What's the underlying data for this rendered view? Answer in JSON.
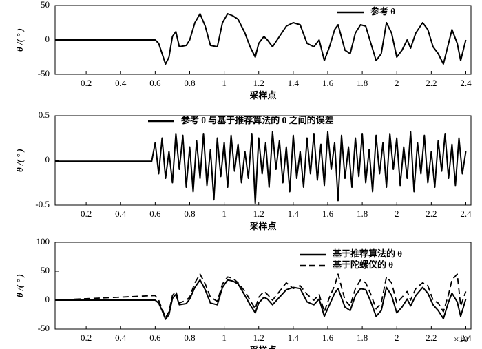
{
  "chart_data": [
    {
      "type": "line",
      "ylabel": "θ /( ° )",
      "xlabel": "采样点",
      "xlim": [
        0.02,
        2.43
      ],
      "xticks": [
        0.2,
        0.4,
        0.6,
        0.8,
        1.0,
        1.2,
        1.4,
        1.6,
        1.8,
        2.0,
        2.2,
        2.4
      ],
      "ylim": [
        -50,
        50
      ],
      "yticks": [
        -50,
        0,
        50
      ],
      "x": [
        0.02,
        0.6,
        0.62,
        0.64,
        0.66,
        0.68,
        0.7,
        0.72,
        0.74,
        0.78,
        0.8,
        0.83,
        0.86,
        0.89,
        0.92,
        0.96,
        0.99,
        1.02,
        1.05,
        1.08,
        1.12,
        1.15,
        1.18,
        1.2,
        1.23,
        1.25,
        1.28,
        1.32,
        1.36,
        1.4,
        1.44,
        1.48,
        1.52,
        1.55,
        1.58,
        1.61,
        1.64,
        1.66,
        1.7,
        1.73,
        1.76,
        1.79,
        1.82,
        1.85,
        1.88,
        1.91,
        1.94,
        1.97,
        2.0,
        2.03,
        2.06,
        2.08,
        2.11,
        2.15,
        2.18,
        2.21,
        2.24,
        2.27,
        2.3,
        2.32,
        2.35,
        2.37,
        2.4
      ],
      "series": [
        {
          "name": "参考 θ",
          "color": "#000000",
          "dashed": false,
          "values": [
            0,
            0,
            -5,
            -20,
            -35,
            -25,
            5,
            12,
            -10,
            -8,
            0,
            25,
            38,
            20,
            -8,
            -10,
            25,
            38,
            35,
            30,
            10,
            -10,
            -25,
            -5,
            5,
            0,
            -10,
            5,
            20,
            25,
            22,
            -5,
            -10,
            0,
            -30,
            -10,
            15,
            22,
            -15,
            -20,
            10,
            22,
            20,
            -5,
            -30,
            -20,
            25,
            10,
            -25,
            -15,
            0,
            -12,
            10,
            25,
            15,
            -10,
            -20,
            -35,
            -5,
            15,
            -5,
            -30,
            0
          ]
        }
      ]
    },
    {
      "type": "line",
      "ylabel": "θ /( ° )",
      "xlabel": "采样点",
      "xlim": [
        0.02,
        2.43
      ],
      "xticks": [
        0.2,
        0.4,
        0.6,
        0.8,
        1.0,
        1.2,
        1.4,
        1.6,
        1.8,
        2.0,
        2.2,
        2.4
      ],
      "ylim": [
        -0.5,
        0.5
      ],
      "yticks": [
        -0.5,
        0,
        0.5
      ],
      "x": [
        0.02,
        0.58,
        0.6,
        0.62,
        0.64,
        0.66,
        0.68,
        0.7,
        0.72,
        0.74,
        0.76,
        0.78,
        0.8,
        0.82,
        0.84,
        0.86,
        0.88,
        0.9,
        0.92,
        0.94,
        0.96,
        0.98,
        1.0,
        1.02,
        1.04,
        1.06,
        1.08,
        1.1,
        1.12,
        1.14,
        1.16,
        1.18,
        1.2,
        1.22,
        1.24,
        1.26,
        1.28,
        1.3,
        1.32,
        1.34,
        1.36,
        1.38,
        1.4,
        1.42,
        1.44,
        1.46,
        1.48,
        1.5,
        1.52,
        1.54,
        1.56,
        1.58,
        1.6,
        1.62,
        1.64,
        1.66,
        1.68,
        1.7,
        1.72,
        1.74,
        1.76,
        1.78,
        1.8,
        1.82,
        1.84,
        1.86,
        1.88,
        1.9,
        1.92,
        1.94,
        1.96,
        1.98,
        2.0,
        2.02,
        2.04,
        2.06,
        2.08,
        2.1,
        2.12,
        2.14,
        2.16,
        2.18,
        2.2,
        2.22,
        2.24,
        2.26,
        2.28,
        2.3,
        2.32,
        2.34,
        2.36,
        2.38,
        2.4
      ],
      "series": [
        {
          "name": "参考 θ 与基于推荐算法的 θ 之间的误差",
          "color": "#000000",
          "dashed": false,
          "values": [
            -0.01,
            -0.01,
            0.2,
            -0.15,
            0.25,
            -0.2,
            0.1,
            -0.25,
            0.3,
            -0.1,
            0.28,
            -0.3,
            0.15,
            -0.35,
            0.22,
            -0.2,
            0.3,
            -0.28,
            0.12,
            -0.44,
            0.25,
            -0.18,
            0.2,
            -0.3,
            0.28,
            -0.12,
            0.18,
            -0.25,
            0.1,
            -0.2,
            0.3,
            -0.48,
            0.25,
            -0.15,
            0.2,
            -0.3,
            0.32,
            -0.1,
            0.22,
            -0.25,
            0.15,
            -0.35,
            0.28,
            -0.2,
            0.1,
            -0.3,
            0.25,
            -0.15,
            0.3,
            -0.22,
            0.18,
            -0.28,
            0.32,
            -0.1,
            0.2,
            -0.45,
            0.28,
            -0.2,
            0.15,
            -0.3,
            0.25,
            -0.18,
            0.3,
            -0.25,
            0.12,
            -0.35,
            0.28,
            -0.15,
            0.2,
            -0.3,
            0.3,
            -0.1,
            0.25,
            -0.28,
            0.15,
            -0.2,
            0.32,
            -0.35,
            0.2,
            -0.15,
            0.28,
            -0.25,
            0.1,
            -0.3,
            0.22,
            -0.12,
            0.3,
            -0.2,
            0.18,
            -0.28,
            0.25,
            -0.15,
            0.1
          ]
        }
      ]
    },
    {
      "type": "line",
      "ylabel": "θ /( ° )",
      "xlabel": "采样点",
      "x_offset_label": "×10⁴",
      "xlim": [
        0.02,
        2.43
      ],
      "xticks": [
        0.2,
        0.4,
        0.6,
        0.8,
        1.0,
        1.2,
        1.4,
        1.6,
        1.8,
        2.0,
        2.2,
        2.4
      ],
      "ylim": [
        -50,
        100
      ],
      "yticks": [
        -50,
        0,
        50,
        100
      ],
      "x": [
        0.02,
        0.6,
        0.62,
        0.64,
        0.66,
        0.68,
        0.7,
        0.72,
        0.74,
        0.78,
        0.8,
        0.83,
        0.86,
        0.89,
        0.92,
        0.96,
        0.99,
        1.02,
        1.05,
        1.08,
        1.12,
        1.15,
        1.18,
        1.2,
        1.23,
        1.25,
        1.28,
        1.32,
        1.36,
        1.4,
        1.44,
        1.48,
        1.52,
        1.55,
        1.58,
        1.61,
        1.64,
        1.66,
        1.7,
        1.73,
        1.76,
        1.79,
        1.82,
        1.85,
        1.88,
        1.91,
        1.94,
        1.97,
        2.0,
        2.03,
        2.06,
        2.08,
        2.11,
        2.15,
        2.18,
        2.21,
        2.24,
        2.27,
        2.3,
        2.32,
        2.35,
        2.37,
        2.4
      ],
      "series": [
        {
          "name": "基于推荐算法的 θ",
          "color": "#000000",
          "dashed": false,
          "values": [
            0,
            0,
            -5,
            -18,
            -33,
            -25,
            3,
            10,
            -8,
            -6,
            2,
            22,
            35,
            18,
            -5,
            -8,
            22,
            35,
            33,
            28,
            8,
            -8,
            -22,
            -5,
            5,
            2,
            -8,
            5,
            18,
            22,
            20,
            -3,
            -8,
            2,
            -28,
            -8,
            12,
            20,
            -12,
            -18,
            8,
            20,
            18,
            -3,
            -28,
            -18,
            22,
            8,
            -22,
            -12,
            2,
            -10,
            8,
            22,
            12,
            -8,
            -18,
            -32,
            -3,
            12,
            -3,
            -28,
            2
          ]
        },
        {
          "name": "基于陀螺仪的 θ",
          "color": "#000000",
          "dashed": true,
          "values": [
            0,
            8,
            0,
            -15,
            -30,
            -20,
            8,
            15,
            -5,
            0,
            5,
            30,
            45,
            28,
            5,
            -2,
            28,
            40,
            38,
            30,
            15,
            0,
            -15,
            5,
            15,
            10,
            0,
            15,
            30,
            20,
            25,
            10,
            0,
            10,
            -20,
            5,
            25,
            45,
            0,
            -10,
            20,
            35,
            30,
            10,
            -15,
            -5,
            40,
            30,
            -5,
            5,
            15,
            0,
            20,
            30,
            25,
            0,
            -5,
            -20,
            10,
            35,
            45,
            -10,
            15
          ]
        }
      ]
    }
  ]
}
